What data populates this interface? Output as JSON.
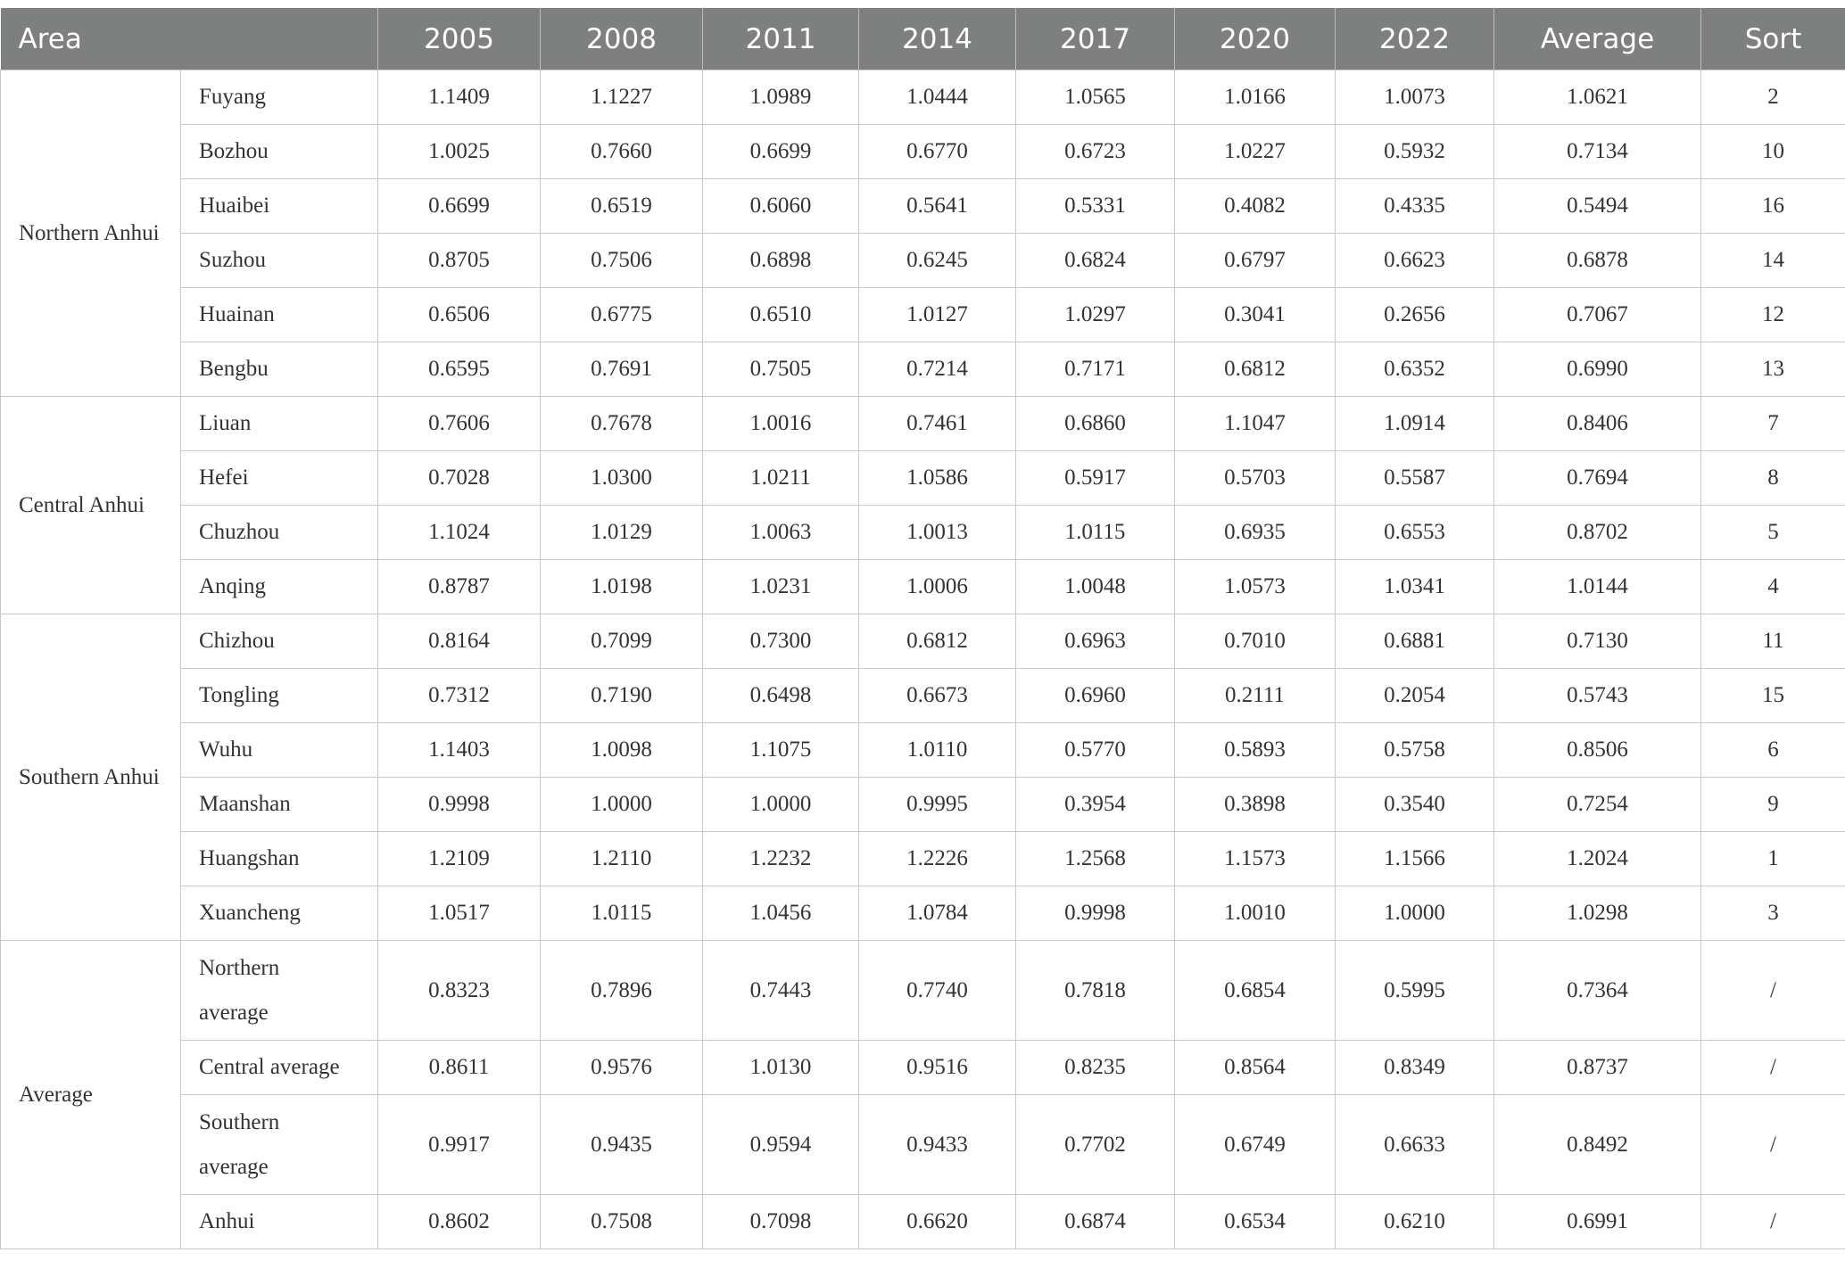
{
  "table": {
    "header": [
      "Area",
      "2005",
      "2008",
      "2011",
      "2014",
      "2017",
      "2020",
      "2022",
      "Average",
      "Sort"
    ],
    "groups": [
      {
        "name": "Northern Anhui",
        "rows": [
          [
            "Fuyang",
            "1.1409",
            "1.1227",
            "1.0989",
            "1.0444",
            "1.0565",
            "1.0166",
            "1.0073",
            "1.0621",
            "2"
          ],
          [
            "Bozhou",
            "1.0025",
            "0.7660",
            "0.6699",
            "0.6770",
            "0.6723",
            "1.0227",
            "0.5932",
            "0.7134",
            "10"
          ],
          [
            "Huaibei",
            "0.6699",
            "0.6519",
            "0.6060",
            "0.5641",
            "0.5331",
            "0.4082",
            "0.4335",
            "0.5494",
            "16"
          ],
          [
            "Suzhou",
            "0.8705",
            "0.7506",
            "0.6898",
            "0.6245",
            "0.6824",
            "0.6797",
            "0.6623",
            "0.6878",
            "14"
          ],
          [
            "Huainan",
            "0.6506",
            "0.6775",
            "0.6510",
            "1.0127",
            "1.0297",
            "0.3041",
            "0.2656",
            "0.7067",
            "12"
          ],
          [
            "Bengbu",
            "0.6595",
            "0.7691",
            "0.7505",
            "0.7214",
            "0.7171",
            "0.6812",
            "0.6352",
            "0.6990",
            "13"
          ]
        ]
      },
      {
        "name": "Central Anhui",
        "rows": [
          [
            "Liuan",
            "0.7606",
            "0.7678",
            "1.0016",
            "0.7461",
            "0.6860",
            "1.1047",
            "1.0914",
            "0.8406",
            "7"
          ],
          [
            "Hefei",
            "0.7028",
            "1.0300",
            "1.0211",
            "1.0586",
            "0.5917",
            "0.5703",
            "0.5587",
            "0.7694",
            "8"
          ],
          [
            "Chuzhou",
            "1.1024",
            "1.0129",
            "1.0063",
            "1.0013",
            "1.0115",
            "0.6935",
            "0.6553",
            "0.8702",
            "5"
          ],
          [
            "Anqing",
            "0.8787",
            "1.0198",
            "1.0231",
            "1.0006",
            "1.0048",
            "1.0573",
            "1.0341",
            "1.0144",
            "4"
          ]
        ]
      },
      {
        "name": "Southern Anhui",
        "rows": [
          [
            "Chizhou",
            "0.8164",
            "0.7099",
            "0.7300",
            "0.6812",
            "0.6963",
            "0.7010",
            "0.6881",
            "0.7130",
            "11"
          ],
          [
            "Tongling",
            "0.7312",
            "0.7190",
            "0.6498",
            "0.6673",
            "0.6960",
            "0.2111",
            "0.2054",
            "0.5743",
            "15"
          ],
          [
            "Wuhu",
            "1.1403",
            "1.0098",
            "1.1075",
            "1.0110",
            "0.5770",
            "0.5893",
            "0.5758",
            "0.8506",
            "6"
          ],
          [
            "Maanshan",
            "0.9998",
            "1.0000",
            "1.0000",
            "0.9995",
            "0.3954",
            "0.3898",
            "0.3540",
            "0.7254",
            "9"
          ],
          [
            "Huangshan",
            "1.2109",
            "1.2110",
            "1.2232",
            "1.2226",
            "1.2568",
            "1.1573",
            "1.1566",
            "1.2024",
            "1"
          ],
          [
            "Xuancheng",
            "1.0517",
            "1.0115",
            "1.0456",
            "1.0784",
            "0.9998",
            "1.0010",
            "1.0000",
            "1.0298",
            "3"
          ]
        ]
      },
      {
        "name": "Average",
        "rows": [
          [
            "Northern average",
            "0.8323",
            "0.7896",
            "0.7443",
            "0.7740",
            "0.7818",
            "0.6854",
            "0.5995",
            "0.7364",
            "/"
          ],
          [
            "Central average",
            "0.8611",
            "0.9576",
            "1.0130",
            "0.9516",
            "0.8235",
            "0.8564",
            "0.8349",
            "0.8737",
            "/"
          ],
          [
            "Southern average",
            "0.9917",
            "0.9435",
            "0.9594",
            "0.9433",
            "0.7702",
            "0.6749",
            "0.6633",
            "0.8492",
            "/"
          ],
          [
            "Anhui",
            "0.8602",
            "0.7508",
            "0.7098",
            "0.6620",
            "0.6874",
            "0.6534",
            "0.6210",
            "0.6991",
            "/"
          ]
        ]
      }
    ]
  }
}
